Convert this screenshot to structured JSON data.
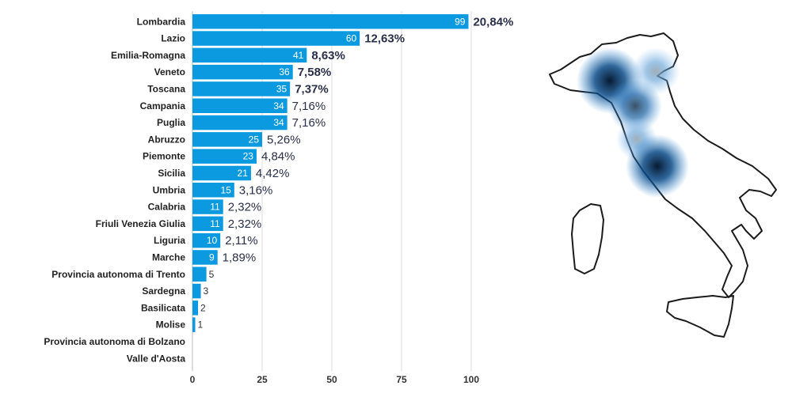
{
  "chart_data": {
    "type": "bar",
    "orientation": "horizontal",
    "categories": [
      "Lombardia",
      "Lazio",
      "Emilia-Romagna",
      "Veneto",
      "Toscana",
      "Campania",
      "Puglia",
      "Abruzzo",
      "Piemonte",
      "Sicilia",
      "Umbria",
      "Calabria",
      "Friuli Venezia Giulia",
      "Liguria",
      "Marche",
      "Provincia autonoma di Trento",
      "Sardegna",
      "Basilicata",
      "Molise",
      "Provincia autonoma di Bolzano",
      "Valle d'Aosta"
    ],
    "values": [
      99,
      60,
      41,
      36,
      35,
      34,
      34,
      25,
      23,
      21,
      15,
      11,
      11,
      10,
      9,
      5,
      3,
      2,
      1,
      0,
      0
    ],
    "percentages": [
      "20,84%",
      "12,63%",
      "8,63%",
      "7,58%",
      "7,37%",
      "7,16%",
      "7,16%",
      "5,26%",
      "4,84%",
      "4,42%",
      "3,16%",
      "2,32%",
      "2,32%",
      "2,11%",
      "1,89%",
      "",
      "",
      "",
      "",
      "",
      ""
    ],
    "bold_percentages": [
      true,
      true,
      true,
      true,
      true,
      false,
      false,
      false,
      false,
      false,
      false,
      false,
      false,
      false,
      false,
      false,
      false,
      false,
      false,
      false,
      false
    ],
    "xlim": [
      0,
      100
    ],
    "xticks": [
      "0",
      "25",
      "50",
      "75",
      "100"
    ],
    "grid": true,
    "bar_color": "#0b9ae0"
  },
  "map": {
    "type": "heatmap-map",
    "region": "Italy",
    "heat_color": "#0a3d6e"
  }
}
